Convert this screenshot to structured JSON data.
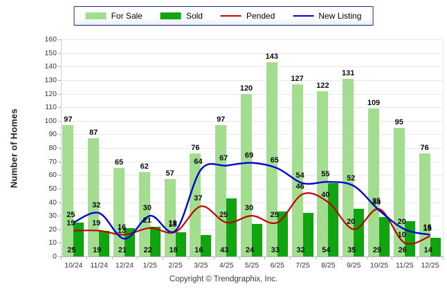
{
  "chart_data": {
    "type": "combo-bar-line",
    "title": "",
    "ylabel": "Number of Homes",
    "ylim": [
      0,
      160
    ],
    "ytick_step": 10,
    "grid": "horizontal",
    "legend_position": "top-center",
    "categories": [
      "10/24",
      "11/24",
      "12/24",
      "1/25",
      "2/25",
      "3/25",
      "4/25",
      "5/25",
      "6/25",
      "7/25",
      "8/25",
      "9/25",
      "10/25",
      "11/25",
      "12/25"
    ],
    "series": [
      {
        "name": "For Sale",
        "type": "bar",
        "color": "#A3DE90",
        "values": [
          97,
          87,
          65,
          62,
          57,
          76,
          97,
          120,
          143,
          127,
          122,
          131,
          109,
          95,
          76
        ]
      },
      {
        "name": "Sold",
        "type": "bar",
        "color": "#10A510",
        "values": [
          25,
          19,
          21,
          22,
          18,
          16,
          43,
          24,
          33,
          32,
          54,
          35,
          29,
          26,
          14
        ]
      },
      {
        "name": "Pended",
        "type": "line",
        "color": "#C00000",
        "values": [
          19,
          19,
          16,
          21,
          18,
          37,
          25,
          30,
          25,
          46,
          40,
          20,
          35,
          10,
          15
        ]
      },
      {
        "name": "New Listing",
        "type": "line",
        "color": "#0000D2",
        "values": [
          25,
          32,
          13,
          30,
          19,
          64,
          67,
          69,
          65,
          54,
          55,
          52,
          34,
          20,
          16
        ]
      }
    ]
  },
  "footer": {
    "copyright": "Copyright © Trendgraphix, Inc."
  }
}
